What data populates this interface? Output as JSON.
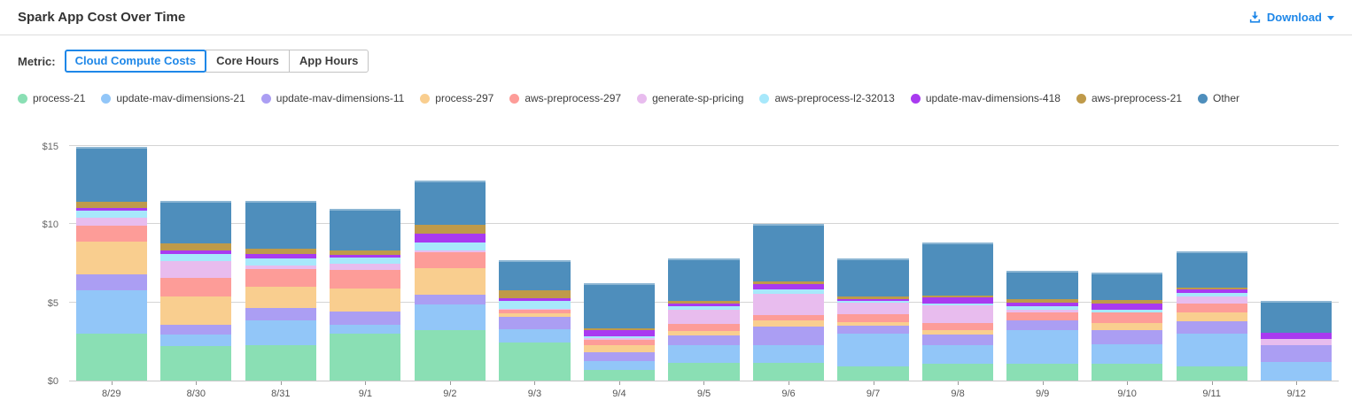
{
  "header": {
    "title": "Spark App Cost Over Time",
    "download_label": "Download"
  },
  "metric_bar": {
    "label": "Metric:",
    "options": [
      {
        "label": "Cloud Compute Costs",
        "selected": true
      },
      {
        "label": "Core Hours",
        "selected": false
      },
      {
        "label": "App Hours",
        "selected": false
      }
    ]
  },
  "colors": {
    "accent_blue": "#1e87e8",
    "gridline": "#d4d4d4",
    "axis_text": "#666666"
  },
  "chart_data": {
    "type": "bar",
    "stacked": true,
    "title": "Spark App Cost Over Time",
    "xlabel": "",
    "ylabel": "Cloud Compute Costs ($)",
    "ylim": [
      0,
      16
    ],
    "grid": true,
    "legend_position": "top",
    "y_ticks": [
      {
        "label": "$0",
        "value": 0
      },
      {
        "label": "$5",
        "value": 5
      },
      {
        "label": "$10",
        "value": 10
      },
      {
        "label": "$15",
        "value": 15
      }
    ],
    "categories": [
      "8/29",
      "8/30",
      "8/31",
      "9/1",
      "9/2",
      "9/3",
      "9/4",
      "9/5",
      "9/6",
      "9/7",
      "9/8",
      "9/9",
      "9/10",
      "9/11",
      "9/12"
    ],
    "series": [
      {
        "name": "process-21",
        "color": "#8adfb4",
        "values": [
          3.0,
          2.2,
          2.25,
          3.0,
          3.25,
          2.45,
          0.7,
          1.15,
          1.15,
          0.9,
          1.05,
          1.1,
          1.1,
          0.9,
          0
        ]
      },
      {
        "name": "update-mav-dimensions-21",
        "color": "#92c6f8",
        "values": [
          2.75,
          0.75,
          1.6,
          0.55,
          1.6,
          0.85,
          0.55,
          1.1,
          1.1,
          2.1,
          1.2,
          2.1,
          1.2,
          2.1,
          1.2
        ]
      },
      {
        "name": "update-mav-dimensions-11",
        "color": "#ab9ef3",
        "values": [
          1.05,
          0.6,
          0.8,
          0.85,
          0.65,
          0.75,
          0.55,
          0.65,
          1.2,
          0.5,
          0.7,
          0.65,
          0.9,
          0.8,
          1.05
        ]
      },
      {
        "name": "process-297",
        "color": "#f9ce8f",
        "values": [
          2.05,
          1.8,
          1.35,
          1.5,
          1.7,
          0.25,
          0.45,
          0.25,
          0.4,
          0.25,
          0.25,
          0,
          0.45,
          0.55,
          0
        ]
      },
      {
        "name": "aws-preprocess-297",
        "color": "#fd9c98",
        "values": [
          1.05,
          1.2,
          1.15,
          1.15,
          1.0,
          0.2,
          0.35,
          0.45,
          0.35,
          0.5,
          0.45,
          0.5,
          0.7,
          0.55,
          0
        ]
      },
      {
        "name": "generate-sp-pricing",
        "color": "#e8bcee",
        "values": [
          0.5,
          1.1,
          0.2,
          0.4,
          0.1,
          0.1,
          0.1,
          0.95,
          1.35,
          0.7,
          1.15,
          0.2,
          0,
          0.45,
          0.4
        ]
      },
      {
        "name": "aws-preprocess-l2-32013",
        "color": "#a7e8fb",
        "values": [
          0.45,
          0.45,
          0.45,
          0.4,
          0.55,
          0.5,
          0.15,
          0.2,
          0.25,
          0.15,
          0.15,
          0.2,
          0.2,
          0.25,
          0
        ]
      },
      {
        "name": "update-mav-dimensions-418",
        "color": "#a93af0",
        "values": [
          0.2,
          0.2,
          0.3,
          0.2,
          0.55,
          0.15,
          0.35,
          0.15,
          0.35,
          0.1,
          0.35,
          0.25,
          0.4,
          0.2,
          0.4
        ]
      },
      {
        "name": "aws-preprocess-21",
        "color": "#bf9a4a",
        "values": [
          0.4,
          0.45,
          0.35,
          0.25,
          0.55,
          0.5,
          0.15,
          0.2,
          0.2,
          0.2,
          0.15,
          0.2,
          0.2,
          0.15,
          0
        ]
      },
      {
        "name": "Other",
        "color": "#4e8ebc",
        "values": [
          3.5,
          2.75,
          3.05,
          2.65,
          2.85,
          1.95,
          2.85,
          2.7,
          3.65,
          2.4,
          3.35,
          1.8,
          1.75,
          2.3,
          2.05
        ]
      }
    ]
  }
}
